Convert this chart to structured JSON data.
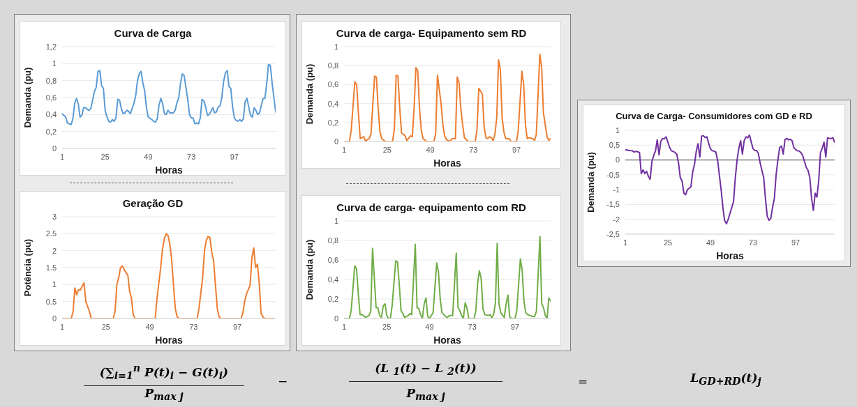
{
  "chart_data": [
    {
      "type": "line",
      "title": "Curva de Carga",
      "xlabel": "Horas",
      "ylabel": "Demanda (pu)",
      "color": "#5b9bd5",
      "grid": "y",
      "xlim": [
        1,
        120
      ],
      "xticks": [
        1,
        25,
        49,
        73,
        97
      ],
      "ylim": [
        0,
        1.2
      ],
      "yticks": [
        0,
        {
          "value": 0.2,
          "label": "0,2"
        },
        {
          "value": 0.4,
          "label": "0,4"
        },
        {
          "value": 0.6,
          "label": "0,6"
        },
        {
          "value": 0.8,
          "label": "0,8"
        },
        1,
        {
          "value": 1.2,
          "label": "1,2"
        }
      ],
      "x": [
        1,
        3,
        4,
        5,
        6,
        7,
        8,
        9,
        10,
        11,
        12,
        13,
        14,
        15,
        16,
        17,
        18,
        19,
        20,
        21,
        22,
        23,
        24,
        25,
        26,
        27,
        28,
        29,
        30,
        31,
        32,
        33,
        34,
        35,
        36,
        37,
        38,
        39,
        40,
        41,
        42,
        43,
        44,
        45,
        46,
        47,
        48,
        49,
        51,
        52,
        53,
        54,
        55,
        56,
        57,
        58,
        59,
        60,
        61,
        62,
        63,
        64,
        65,
        66,
        67,
        68,
        69,
        70,
        71,
        72,
        73,
        74,
        75,
        76,
        77,
        78,
        79,
        80,
        81,
        82,
        83,
        84,
        85,
        86,
        87,
        88,
        89,
        90,
        91,
        92,
        93,
        94,
        95,
        96,
        97,
        98,
        99,
        100,
        101,
        102,
        103,
        104,
        105,
        106,
        107,
        108,
        109,
        110,
        111,
        112,
        113,
        114,
        115,
        116,
        117,
        118,
        119,
        120
      ],
      "values": [
        0.41,
        0.37,
        0.3,
        0.29,
        0.28,
        0.35,
        0.53,
        0.59,
        0.53,
        0.37,
        0.39,
        0.48,
        0.48,
        0.46,
        0.45,
        0.47,
        0.57,
        0.67,
        0.72,
        0.91,
        0.92,
        0.74,
        0.71,
        0.45,
        0.37,
        0.32,
        0.31,
        0.34,
        0.32,
        0.36,
        0.58,
        0.57,
        0.47,
        0.41,
        0.42,
        0.45,
        0.44,
        0.41,
        0.47,
        0.53,
        0.62,
        0.8,
        0.88,
        0.91,
        0.77,
        0.68,
        0.48,
        0.37,
        0.34,
        0.32,
        0.31,
        0.35,
        0.51,
        0.59,
        0.53,
        0.41,
        0.4,
        0.45,
        0.42,
        0.42,
        0.42,
        0.45,
        0.54,
        0.6,
        0.77,
        0.88,
        0.86,
        0.72,
        0.58,
        0.4,
        0.36,
        0.36,
        0.29,
        0.3,
        0.29,
        0.36,
        0.58,
        0.56,
        0.49,
        0.39,
        0.4,
        0.44,
        0.48,
        0.42,
        0.43,
        0.49,
        0.5,
        0.6,
        0.79,
        0.89,
        0.92,
        0.73,
        0.71,
        0.49,
        0.36,
        0.33,
        0.32,
        0.34,
        0.32,
        0.35,
        0.55,
        0.59,
        0.49,
        0.39,
        0.37,
        0.48,
        0.45,
        0.4,
        0.42,
        0.51,
        0.59,
        0.59,
        0.76,
        0.99,
        0.98,
        0.78,
        0.6,
        0.43
      ]
    },
    {
      "type": "line",
      "title": "Curva de carga- Equipamento sem RD",
      "xlabel": "Horas",
      "ylabel": "Demanda (pu)",
      "color": "#ed7d31",
      "grid": "y",
      "xlim": [
        1,
        116
      ],
      "xticks": [
        1,
        25,
        49,
        73,
        97
      ],
      "ylim": [
        0,
        1
      ],
      "yticks": [
        0,
        {
          "value": 0.2,
          "label": "0,2"
        },
        {
          "value": 0.4,
          "label": "0,4"
        },
        {
          "value": 0.6,
          "label": "0,6"
        },
        {
          "value": 0.8,
          "label": "0,8"
        },
        1
      ],
      "x": [
        1,
        4,
        5,
        7,
        8,
        9,
        10,
        12,
        13,
        14,
        15,
        16,
        18,
        19,
        20,
        21,
        22,
        24,
        28,
        29,
        30,
        31,
        32,
        33,
        35,
        36,
        38,
        39,
        40,
        41,
        42,
        43,
        44,
        45,
        47,
        51,
        52,
        53,
        55,
        56,
        57,
        58,
        60,
        61,
        63,
        64,
        65,
        66,
        67,
        68,
        70,
        74,
        75,
        76,
        78,
        79,
        80,
        81,
        82,
        83,
        84,
        85,
        86,
        87,
        88,
        89,
        90,
        91,
        93,
        94,
        97,
        98,
        100,
        101,
        102,
        103,
        104,
        106,
        107,
        108,
        110,
        111,
        112,
        114,
        115,
        116
      ],
      "values": [
        0,
        0,
        0.12,
        0.63,
        0.6,
        0.3,
        0.03,
        0.05,
        0,
        0.02,
        0.03,
        0.08,
        0.69,
        0.68,
        0.35,
        0.1,
        0.03,
        0,
        0,
        0.13,
        0.7,
        0.69,
        0.35,
        0.09,
        0.06,
        0.01,
        0.06,
        0.05,
        0.35,
        0.78,
        0.75,
        0.35,
        0.12,
        0.03,
        0,
        0,
        0.08,
        0.7,
        0.4,
        0.18,
        0.06,
        0.02,
        0,
        0.03,
        0.03,
        0.68,
        0.62,
        0.35,
        0.18,
        0.04,
        0,
        0,
        0.12,
        0.56,
        0.5,
        0.15,
        0.04,
        0.03,
        0.05,
        0.04,
        0.01,
        0.08,
        0.25,
        0.86,
        0.76,
        0.25,
        0.1,
        0.03,
        0.03,
        0,
        0,
        0.12,
        0.74,
        0.6,
        0.17,
        0.03,
        0.04,
        0.03,
        0.01,
        0.07,
        0.92,
        0.78,
        0.3,
        0.05,
        0.01,
        0.03
      ]
    },
    {
      "type": "line",
      "title": "Curva de Carga- Consumidores com GD e RD",
      "xlabel": "Horas",
      "ylabel": "Demanda (pu)",
      "color": "#7030a0",
      "grid": "y",
      "xlim": [
        1,
        119
      ],
      "xticks": [
        1,
        25,
        49,
        73,
        97
      ],
      "ylim": [
        -2.5,
        1
      ],
      "yticks": [
        {
          "value": -2.5,
          "label": "-2,5"
        },
        -2,
        {
          "value": -1.5,
          "label": "-1,5"
        },
        -1,
        {
          "value": -0.5,
          "label": "-0,5"
        },
        0,
        {
          "value": 0.5,
          "label": "0,5"
        },
        1
      ],
      "ref_lines": [
        {
          "axis": "y",
          "value": 0,
          "color": "#7f7f7f"
        }
      ],
      "x": [
        1,
        3,
        5,
        6,
        7,
        8,
        9,
        10,
        11,
        12,
        13,
        14,
        15,
        16,
        17,
        18,
        19,
        20,
        21,
        22,
        23,
        24,
        25,
        26,
        27,
        28,
        29,
        30,
        31,
        32,
        33,
        34,
        35,
        36,
        37,
        38,
        39,
        40,
        41,
        42,
        43,
        44,
        45,
        46,
        47,
        48,
        49,
        50,
        51,
        52,
        53,
        54,
        55,
        56,
        57,
        58,
        59,
        60,
        62,
        63,
        64,
        65,
        66,
        67,
        68,
        69,
        70,
        71,
        72,
        73,
        74,
        75,
        76,
        77,
        79,
        80,
        81,
        82,
        83,
        84,
        85,
        86,
        87,
        88,
        89,
        90,
        91,
        92,
        93,
        94,
        95,
        96,
        97,
        98,
        99,
        100,
        101,
        102,
        103,
        104,
        105,
        106,
        107,
        108,
        109,
        110,
        111,
        112,
        113,
        114,
        115,
        116,
        117,
        118,
        119
      ],
      "values": [
        0.35,
        0.32,
        0.31,
        0.27,
        0.29,
        0.28,
        0.25,
        -0.46,
        -0.33,
        -0.46,
        -0.38,
        -0.55,
        -0.65,
        -0.05,
        0.15,
        0.3,
        0.68,
        0.17,
        0.63,
        0.72,
        0.72,
        0.78,
        0.6,
        0.42,
        0.31,
        0.29,
        0.25,
        0.2,
        -0.1,
        -0.6,
        -0.7,
        -1.12,
        -1.17,
        -1,
        -0.95,
        -0.9,
        -0.4,
        -0.15,
        0.3,
        0.55,
        0.1,
        0.8,
        0.82,
        0.76,
        0.78,
        0.56,
        0.38,
        0.31,
        0.3,
        0.27,
        0,
        -0.5,
        -1,
        -1.6,
        -2.05,
        -2.15,
        -2,
        -1.8,
        -1.4,
        -0.6,
        0,
        0.4,
        0.65,
        0.2,
        0.65,
        0.78,
        0.75,
        0.84,
        0.6,
        0.38,
        0.32,
        0.32,
        0.22,
        -0.1,
        -0.6,
        -1.3,
        -1.9,
        -2.03,
        -1.97,
        -1.6,
        -1.3,
        -0.5,
        0,
        0.42,
        0.47,
        0.2,
        0.68,
        0.73,
        0.68,
        0.7,
        0.65,
        0.42,
        0.35,
        0.31,
        0.3,
        0.25,
        0.15,
        -0.05,
        -0.25,
        -0.35,
        -0.6,
        -1.3,
        -1.7,
        -1.12,
        -1.25,
        -0.7,
        0.25,
        0.4,
        0.6,
        0.1,
        0.75,
        0.73,
        0.72,
        0.75,
        0.6
      ]
    },
    {
      "type": "line",
      "title": "Geração GD",
      "xlabel": "Horas",
      "ylabel": "Potência (pu)",
      "color": "#ed7d31",
      "grid": "y",
      "xlim": [
        1,
        118
      ],
      "xticks": [
        1,
        25,
        49,
        73,
        97
      ],
      "ylim": [
        0,
        3
      ],
      "yticks": [
        0,
        0.5,
        1,
        1.5,
        2,
        2.5,
        3
      ],
      "x": [
        1,
        6,
        7,
        8,
        9,
        10,
        11,
        12,
        13,
        14,
        16,
        17,
        29,
        30,
        31,
        32,
        33,
        34,
        35,
        36,
        37,
        38,
        39,
        40,
        41,
        52,
        53,
        55,
        56,
        57,
        58,
        59,
        60,
        61,
        62,
        63,
        64,
        65,
        75,
        76,
        78,
        79,
        80,
        81,
        82,
        83,
        84,
        85,
        86,
        87,
        88,
        99,
        100,
        101,
        102,
        104,
        105,
        106,
        107,
        108,
        109,
        110,
        111,
        112,
        117
      ],
      "values": [
        0,
        0,
        0.2,
        0.9,
        0.7,
        0.85,
        0.84,
        0.95,
        1.05,
        0.5,
        0.2,
        0,
        0,
        0.2,
        1,
        1.2,
        1.5,
        1.55,
        1.45,
        1.35,
        1.28,
        0.8,
        0.6,
        0.1,
        0,
        0,
        0.6,
        1.5,
        2.05,
        2.35,
        2.5,
        2.45,
        2.2,
        1.75,
        1,
        0.3,
        0.05,
        0,
        0,
        0.3,
        1.2,
        2,
        2.3,
        2.42,
        2.38,
        1.95,
        1.7,
        1,
        0.3,
        0.05,
        0,
        0,
        0.15,
        0.5,
        0.72,
        0.98,
        1.8,
        2.08,
        1.5,
        1.6,
        1.05,
        0.15,
        0.05,
        0,
        0
      ]
    },
    {
      "type": "line",
      "title": "Curva de carga- equipamento com RD",
      "xlabel": "Horas",
      "ylabel": "Demanda (pu)",
      "color": "#70ad47",
      "grid": "y",
      "xlim": [
        1,
        117
      ],
      "xticks": [
        1,
        25,
        49,
        73,
        97
      ],
      "ylim": [
        0,
        1
      ],
      "yticks": [
        0,
        {
          "value": 0.2,
          "label": "0,2"
        },
        {
          "value": 0.4,
          "label": "0,4"
        },
        {
          "value": 0.6,
          "label": "0,6"
        },
        {
          "value": 0.8,
          "label": "0,8"
        },
        1
      ],
      "x": [
        1,
        4,
        5,
        7,
        8,
        9,
        10,
        11,
        12,
        13,
        14,
        15,
        16,
        17,
        19,
        20,
        21,
        22,
        23,
        24,
        25,
        26,
        27,
        28,
        30,
        31,
        32,
        33,
        34,
        35,
        37,
        38,
        39,
        41,
        42,
        43,
        44,
        45,
        46,
        47,
        48,
        49,
        51,
        53,
        54,
        55,
        56,
        58,
        59,
        60,
        62,
        64,
        65,
        66,
        67,
        68,
        69,
        70,
        71,
        74,
        75,
        76,
        77,
        78,
        79,
        80,
        82,
        83,
        84,
        85,
        86,
        87,
        88,
        89,
        91,
        92,
        93,
        94,
        95,
        97,
        98,
        100,
        101,
        102,
        103,
        104,
        107,
        108,
        109,
        111,
        112,
        113,
        114,
        115,
        116,
        117
      ],
      "values": [
        0,
        0,
        0.08,
        0.54,
        0.51,
        0.25,
        0.04,
        0.04,
        0.03,
        0.01,
        0.02,
        0.03,
        0.07,
        0.72,
        0.11,
        0.11,
        0.03,
        0.01,
        0.13,
        0.15,
        0.03,
        0,
        0,
        0.13,
        0.59,
        0.58,
        0.35,
        0.08,
        0.05,
        0.01,
        0.03,
        0.05,
        0.04,
        0.76,
        0.11,
        0.1,
        0.04,
        0,
        0.15,
        0.21,
        0.02,
        0,
        0.06,
        0.57,
        0.48,
        0.2,
        0.06,
        0.02,
        0.01,
        0.03,
        0.03,
        0.67,
        0.11,
        0.08,
        0.03,
        0,
        0.16,
        0.11,
        0,
        0,
        0.08,
        0.36,
        0.49,
        0.41,
        0.1,
        0.04,
        0.03,
        0.04,
        0.01,
        0.04,
        0.16,
        0.77,
        0.15,
        0.06,
        0.01,
        0.15,
        0.24,
        0.02,
        0,
        0,
        0.08,
        0.61,
        0.5,
        0.18,
        0.06,
        0.04,
        0.02,
        0.02,
        0.07,
        0.84,
        0.15,
        0.11,
        0.03,
        0,
        0.21,
        0.18
      ]
    },
    {
      "type": "other",
      "annotations": [
        "(∑$_{i=1}$$^{n}$ P(t)$_{i}$ − G(t)$_{i}$)",
        "P$_{max j}$",
        "−",
        "(L $_{1}$(t) − L $_{2}$(t))",
        "P$_{max j}$",
        "=",
        "L$_{GD+RD}$(t)$_{j}$"
      ]
    }
  ]
}
